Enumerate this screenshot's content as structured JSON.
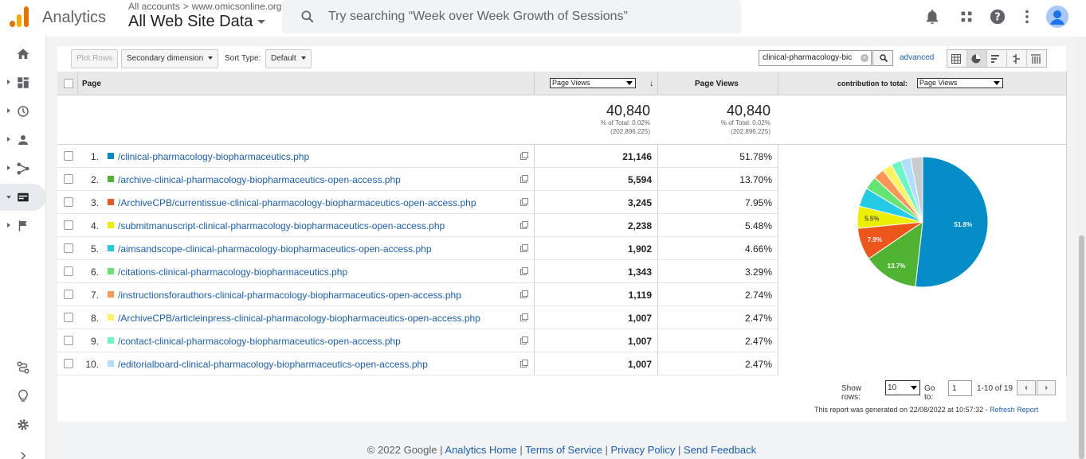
{
  "header": {
    "app_name": "Analytics",
    "accounts_label": "All accounts",
    "property": "www.omicsonline.org",
    "view_name": "All Web Site Data",
    "search_placeholder": "Try searching “Week over Week Growth of Sessions”"
  },
  "toolbar": {
    "plot_rows": "Plot Rows",
    "secondary_dimension": "Secondary dimension",
    "sort_type_label": "Sort Type:",
    "sort_type_value": "Default",
    "filter_value": "clinical-pharmacology-bic",
    "advanced": "advanced"
  },
  "table": {
    "col_page": "Page",
    "col_metric_select": "Page Views",
    "col_metric": "Page Views",
    "contribution_label": "contribution to total:",
    "contribution_select": "Page Views",
    "totals": [
      {
        "value": "40,840",
        "pct": "% of Total: 0.02%",
        "of": "(202,896,225)"
      },
      {
        "value": "40,840",
        "pct": "% of Total: 0.02%",
        "of": "(202,896,225)"
      }
    ],
    "rows": [
      {
        "num": "1.",
        "path": "/clinical-pharmacology-biopharmaceutics.php",
        "views": "21,146",
        "pct": "51.78%",
        "color": "#058dc7"
      },
      {
        "num": "2.",
        "path": "/archive-clinical-pharmacology-biopharmaceutics-open-access.php",
        "views": "5,594",
        "pct": "13.70%",
        "color": "#50b432"
      },
      {
        "num": "3.",
        "path": "/ArchiveCPB/currentissue-clinical-pharmacology-biopharmaceutics-open-access.php",
        "views": "3,245",
        "pct": "7.95%",
        "color": "#ed561b"
      },
      {
        "num": "4.",
        "path": "/submitmanuscript-clinical-pharmacology-biopharmaceutics-open-access.php",
        "views": "2,238",
        "pct": "5.48%",
        "color": "#edef00"
      },
      {
        "num": "5.",
        "path": "/aimsandscope-clinical-pharmacology-biopharmaceutics-open-access.php",
        "views": "1,902",
        "pct": "4.66%",
        "color": "#24cbe5"
      },
      {
        "num": "6.",
        "path": "/citations-clinical-pharmacology-biopharmaceutics.php",
        "views": "1,343",
        "pct": "3.29%",
        "color": "#64e572"
      },
      {
        "num": "7.",
        "path": "/instructionsforauthors-clinical-pharmacology-biopharmaceutics-open-access.php",
        "views": "1,119",
        "pct": "2.74%",
        "color": "#ff9655"
      },
      {
        "num": "8.",
        "path": "/ArchiveCPB/articleinpress-clinical-pharmacology-biopharmaceutics-open-access.php",
        "views": "1,007",
        "pct": "2.47%",
        "color": "#fff263"
      },
      {
        "num": "9.",
        "path": "/contact-clinical-pharmacology-biopharmaceutics-open-access.php",
        "views": "1,007",
        "pct": "2.47%",
        "color": "#6af9c4"
      },
      {
        "num": "10.",
        "path": "/editorialboard-clinical-pharmacology-biopharmaceutics-open-access.php",
        "views": "1,007",
        "pct": "2.47%",
        "color": "#b2deff"
      }
    ]
  },
  "chart_data": {
    "type": "pie",
    "values": [
      51.78,
      13.7,
      7.95,
      5.48,
      4.66,
      3.29,
      2.74,
      2.47,
      2.47,
      2.47,
      2.99
    ],
    "colors": [
      "#058dc7",
      "#50b432",
      "#ed561b",
      "#edef00",
      "#24cbe5",
      "#64e572",
      "#ff9655",
      "#fff263",
      "#6af9c4",
      "#b2deff",
      "#cccccc"
    ],
    "data_labels": [
      "51.8%",
      "13.7%",
      "7.9%",
      "5.5%",
      "",
      "",
      "",
      "",
      "",
      "",
      ""
    ]
  },
  "pager": {
    "show_rows_label": "Show rows:",
    "show_rows_value": "10",
    "goto_label": "Go to:",
    "goto_value": "1",
    "range": "1-10 of 19"
  },
  "report": {
    "generated": "This report was generated on 22/08/2022 at 10:57:32 -",
    "refresh": "Refresh Report"
  },
  "footer": {
    "copyright": "© 2022 Google",
    "links": [
      "Analytics Home",
      "Terms of Service",
      "Privacy Policy",
      "Send Feedback"
    ]
  }
}
